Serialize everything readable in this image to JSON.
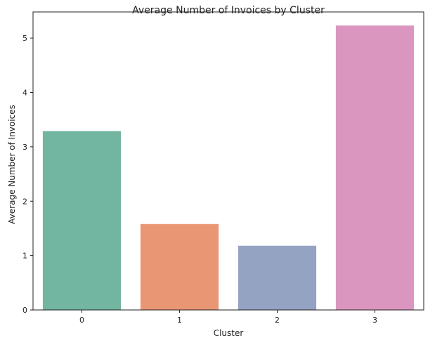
{
  "chart_data": {
    "type": "bar",
    "title": "Average Number of Invoices by Cluster",
    "xlabel": "Cluster",
    "ylabel": "Average Number of Invoices",
    "categories": [
      "0",
      "1",
      "2",
      "3"
    ],
    "values": [
      3.29,
      1.58,
      1.18,
      5.23
    ],
    "colors": [
      "#72b6a1",
      "#e99675",
      "#95a3c3",
      "#db96c0"
    ],
    "ylim": [
      0,
      5.48
    ],
    "yticks": [
      0,
      1,
      2,
      3,
      4,
      5
    ],
    "grid": false,
    "legend": "none"
  }
}
